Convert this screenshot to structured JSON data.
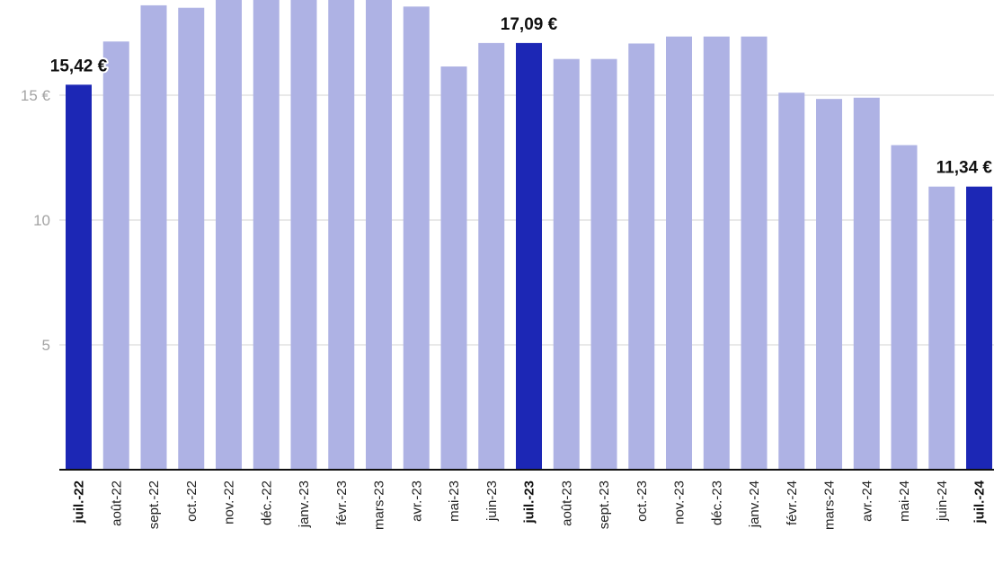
{
  "chart_data": {
    "type": "bar",
    "title": "",
    "xlabel": "",
    "ylabel": "",
    "ylim": [
      0,
      18.8
    ],
    "y_ticks": [
      {
        "value": 5,
        "label": "5"
      },
      {
        "value": 10,
        "label": "10"
      },
      {
        "value": 15,
        "label": "15 €"
      }
    ],
    "grid": true,
    "categories": [
      "juil.-22",
      "août-22",
      "sept.-22",
      "oct.-22",
      "nov.-22",
      "déc.-22",
      "janv.-23",
      "févr.-23",
      "mars-23",
      "avr.-23",
      "mai-23",
      "juin-23",
      "juil.-23",
      "août-23",
      "sept.-23",
      "oct.-23",
      "nov.-23",
      "déc.-23",
      "janv.-24",
      "févr.-24",
      "mars-24",
      "avr.-24",
      "mai-24",
      "juin-24",
      "juil.-24"
    ],
    "values": [
      15.42,
      17.15,
      18.6,
      18.5,
      19.0,
      19.0,
      19.0,
      19.0,
      19.0,
      18.55,
      16.15,
      17.09,
      17.09,
      16.45,
      16.45,
      17.07,
      17.35,
      17.35,
      17.35,
      15.1,
      14.85,
      14.9,
      13.0,
      11.34,
      11.34
    ],
    "highlighted": [
      0,
      12,
      24
    ],
    "data_labels": [
      {
        "index": 0,
        "text": "15,42 €"
      },
      {
        "index": 12,
        "text": "17,09 €"
      },
      {
        "index": 24,
        "text": "11,34 €"
      }
    ],
    "colors": {
      "bar": "#aeb2e4",
      "highlight": "#1c27b5",
      "grid": "#e2e2e2",
      "axis": "#111111"
    }
  }
}
